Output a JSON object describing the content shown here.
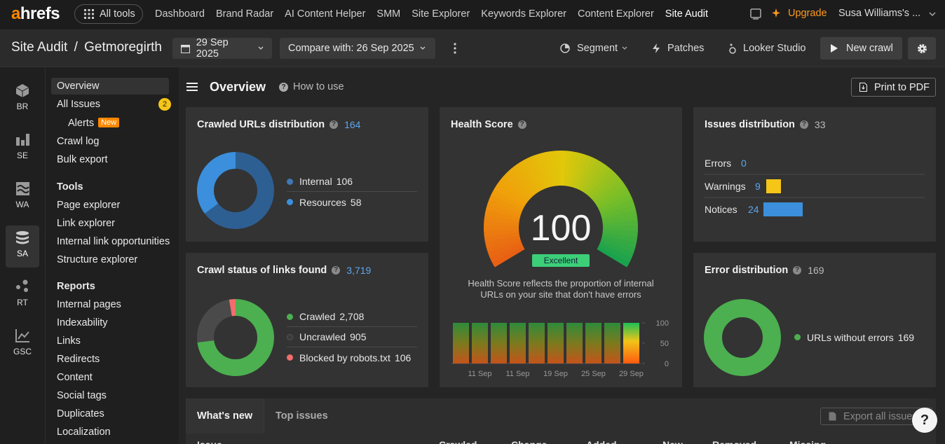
{
  "nav": {
    "logo_a": "a",
    "logo_rest": "hrefs",
    "all_tools": "All tools",
    "links": [
      "Dashboard",
      "Brand Radar",
      "AI Content Helper",
      "SMM",
      "Site Explorer",
      "Keywords Explorer",
      "Content Explorer",
      "Site Audit"
    ],
    "upgrade": "Upgrade",
    "user": "Susa Williams's ..."
  },
  "toolbar": {
    "title": "Site Audit",
    "separator": "/",
    "project": "Getmoregirth",
    "date": "29 Sep 2025",
    "compare": "Compare with: 26 Sep 2025",
    "segment": "Segment",
    "patches": "Patches",
    "looker": "Looker Studio",
    "new_crawl": "New crawl"
  },
  "rail": [
    "BR",
    "SE",
    "WA",
    "SA",
    "RT",
    "GSC"
  ],
  "sidebar": {
    "top": [
      "Overview",
      "All Issues",
      "Alerts",
      "Crawl log",
      "Bulk export"
    ],
    "issues_badge": 2,
    "alerts_badge": "New",
    "tools_heading": "Tools",
    "tools": [
      "Page explorer",
      "Link explorer",
      "Internal link opportunities",
      "Structure explorer"
    ],
    "reports_heading": "Reports",
    "reports": [
      "Internal pages",
      "Indexability",
      "Links",
      "Redirects",
      "Content",
      "Social tags",
      "Duplicates",
      "Localization"
    ]
  },
  "header": {
    "title": "Overview",
    "how_to_use": "How to use",
    "print": "Print to PDF",
    "help": "?"
  },
  "crawled_urls": {
    "type": "pie",
    "title": "Crawled URLs distribution",
    "total": 164,
    "categories": [
      "Internal",
      "Resources"
    ],
    "values": [
      106,
      58
    ],
    "colors": [
      "#2d5f93",
      "#3b8fdc"
    ]
  },
  "crawl_status": {
    "type": "pie",
    "title": "Crawl status of links found",
    "total": "3,719",
    "categories": [
      "Crawled",
      "Uncrawled",
      "Blocked by robots.txt"
    ],
    "values": [
      2708,
      905,
      106
    ],
    "value_labels": [
      "2,708",
      "905",
      "106"
    ],
    "colors": [
      "#4caf50",
      "#4a4a4a",
      "#f26d6d"
    ]
  },
  "health": {
    "type": "gauge",
    "title": "Health Score",
    "score": 100,
    "max": 100,
    "rating": "Excellent",
    "description": "Health Score reflects the proportion of internal URLs on your site that don't have errors",
    "history": {
      "type": "bar",
      "categories": [
        null,
        "11 Sep",
        null,
        "11 Sep",
        null,
        "19 Sep",
        null,
        "25 Sep",
        null,
        "29 Sep"
      ],
      "values": [
        100,
        100,
        100,
        100,
        100,
        100,
        100,
        100,
        100,
        100
      ],
      "ylim": [
        0,
        100
      ],
      "yticks": [
        0,
        50,
        100
      ]
    }
  },
  "issues": {
    "type": "bar",
    "title": "Issues distribution",
    "total": 33,
    "categories": [
      "Errors",
      "Warnings",
      "Notices"
    ],
    "values": [
      0,
      9,
      24
    ],
    "colors": [
      "#e5484d",
      "#f5c518",
      "#3b8fdc"
    ]
  },
  "errors": {
    "type": "pie",
    "title": "Error distribution",
    "total": 169,
    "categories": [
      "URLs without errors"
    ],
    "values": [
      169
    ],
    "colors": [
      "#4caf50"
    ]
  },
  "bottom": {
    "tabs": [
      "What's new",
      "Top issues"
    ],
    "export": "Export all issues",
    "columns": [
      "Issue",
      "Crawled",
      "Change",
      "Added",
      "New",
      "Removed",
      "Missing"
    ]
  }
}
